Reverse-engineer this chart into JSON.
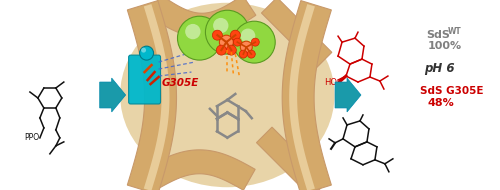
{
  "background_color": "#ffffff",
  "arrow_color": "#1a9aaa",
  "g305e_color": "#cc0000",
  "sds_wt_color": "#808080",
  "sds_g305e_color": "#cc0000",
  "sds_wt_label": "SdS",
  "sds_wt_sub": "WT",
  "sds_wt_pct": "100%",
  "ph_label": "pH 6",
  "sds_g305e_label": "SdS G305E",
  "sds_g305e_pct": "48%",
  "g305e_label": "G305E",
  "ppo_label": "PPO",
  "figsize": [
    5.0,
    1.9
  ],
  "dpi": 100,
  "protein_color": "#d4a96a",
  "protein_dark": "#c8996a",
  "protein_light": "#e8cc99",
  "protein_bg": "#e8d4a8",
  "cyan_color": "#00b8cc",
  "green_sphere": "#90d840",
  "green_sphere_dark": "#5a9a20",
  "phosphate_orange": "#cc6600",
  "phosphate_red": "#dd3300",
  "stick_gray": "#888888",
  "blue_dash": "#4466cc",
  "orange_dash": "#ff8800"
}
